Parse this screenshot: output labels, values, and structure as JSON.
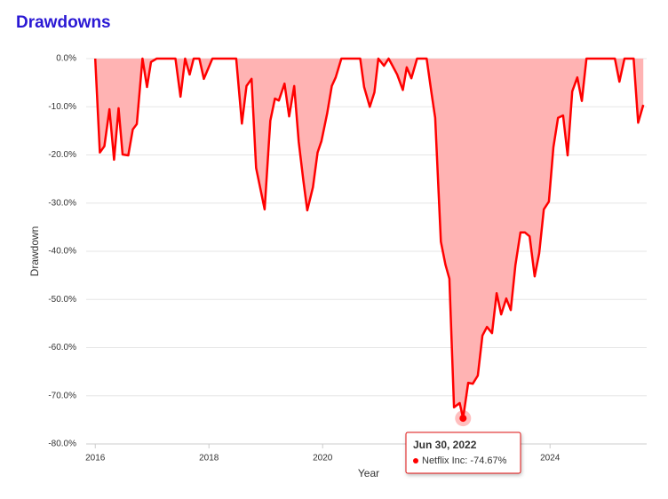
{
  "chart_data": {
    "type": "area",
    "title": "Drawdowns",
    "xlabel": "Year",
    "ylabel": "Drawdown",
    "x": [
      2016,
      2016.08,
      2016.16,
      2016.25,
      2016.33,
      2016.41,
      2016.48,
      2016.58,
      2016.66,
      2016.73,
      2016.83,
      2016.91,
      2016.98,
      2017.08,
      2017.41,
      2017.5,
      2017.58,
      2017.66,
      2017.73,
      2017.83,
      2017.91,
      2018.06,
      2018.48,
      2018.58,
      2018.66,
      2018.75,
      2018.83,
      2018.98,
      2019.08,
      2019.16,
      2019.23,
      2019.33,
      2019.41,
      2019.5,
      2019.58,
      2019.66,
      2019.73,
      2019.83,
      2019.91,
      2019.98,
      2020.08,
      2020.16,
      2020.23,
      2020.33,
      2020.66,
      2020.73,
      2020.83,
      2020.91,
      2020.98,
      2021.08,
      2021.16,
      2021.23,
      2021.31,
      2021.41,
      2021.48,
      2021.56,
      2021.66,
      2021.83,
      2021.91,
      2021.98,
      2022.08,
      2022.16,
      2022.23,
      2022.31,
      2022.41,
      2022.47,
      2022.56,
      2022.64,
      2022.73,
      2022.81,
      2022.89,
      2022.98,
      2023.06,
      2023.14,
      2023.23,
      2023.31,
      2023.39,
      2023.48,
      2023.56,
      2023.64,
      2023.73,
      2023.81,
      2023.89,
      2023.98,
      2024.06,
      2024.14,
      2024.23,
      2024.31,
      2024.39,
      2024.48,
      2024.56,
      2024.64,
      2025.14,
      2025.22,
      2025.31,
      2025.47,
      2025.55,
      2025.64
    ],
    "series": [
      {
        "name": "Netflix Inc",
        "color": "#ff0000",
        "fill": "#ffb3b3",
        "values": [
          0,
          -19.5,
          -18.2,
          -10.5,
          -21,
          -10.3,
          -19.9,
          -20.1,
          -14.7,
          -13.6,
          0,
          -5.9,
          -0.7,
          0,
          0,
          -7.9,
          0,
          -3.3,
          0,
          0,
          -4.2,
          0,
          0,
          -13.5,
          -5.7,
          -4.2,
          -22.7,
          -31.3,
          -12.9,
          -8.3,
          -8.7,
          -5.2,
          -12,
          -5.7,
          -17.3,
          -25.3,
          -31.5,
          -26.7,
          -19.5,
          -17.1,
          -11.4,
          -5.7,
          -3.9,
          0,
          0,
          -5.9,
          -10,
          -7,
          0,
          -1.5,
          0,
          -1.5,
          -3.3,
          -6.5,
          -1.8,
          -4.1,
          0,
          0,
          -6.8,
          -12.3,
          -38,
          -42.8,
          -45.7,
          -72.4,
          -71.5,
          -74.67,
          -67.3,
          -67.5,
          -65.8,
          -57.5,
          -55.7,
          -57,
          -48.7,
          -53.1,
          -49.8,
          -52.2,
          -42.9,
          -36.1,
          -36.1,
          -36.9,
          -45.2,
          -40.4,
          -31.3,
          -29.7,
          -18.4,
          -12.3,
          -11.8,
          -20.1,
          -6.8,
          -3.9,
          -8.8,
          0,
          0,
          -4.8,
          0,
          0,
          -13.3,
          -9.6
        ]
      }
    ],
    "xlim": [
      2015.84,
      2025.7
    ],
    "xticks": [
      2016,
      2018,
      2020,
      2022,
      2024
    ],
    "ylim": [
      -80,
      0
    ],
    "yticks": [
      {
        "value": 0,
        "label": "0.0%"
      },
      {
        "value": -10,
        "label": "-10.0%"
      },
      {
        "value": -20,
        "label": "-20.0%"
      },
      {
        "value": -30,
        "label": "-30.0%"
      },
      {
        "value": -40,
        "label": "-40.0%"
      },
      {
        "value": -50,
        "label": "-50.0%"
      },
      {
        "value": -60,
        "label": "-60.0%"
      },
      {
        "value": -70,
        "label": "-70.0%"
      },
      {
        "value": -80,
        "label": "-80.0%"
      }
    ],
    "grid": true,
    "tooltip": {
      "title": "Jun 30, 2022",
      "x": 2022.47,
      "value": -74.67,
      "value_label": "-74.67%"
    }
  }
}
